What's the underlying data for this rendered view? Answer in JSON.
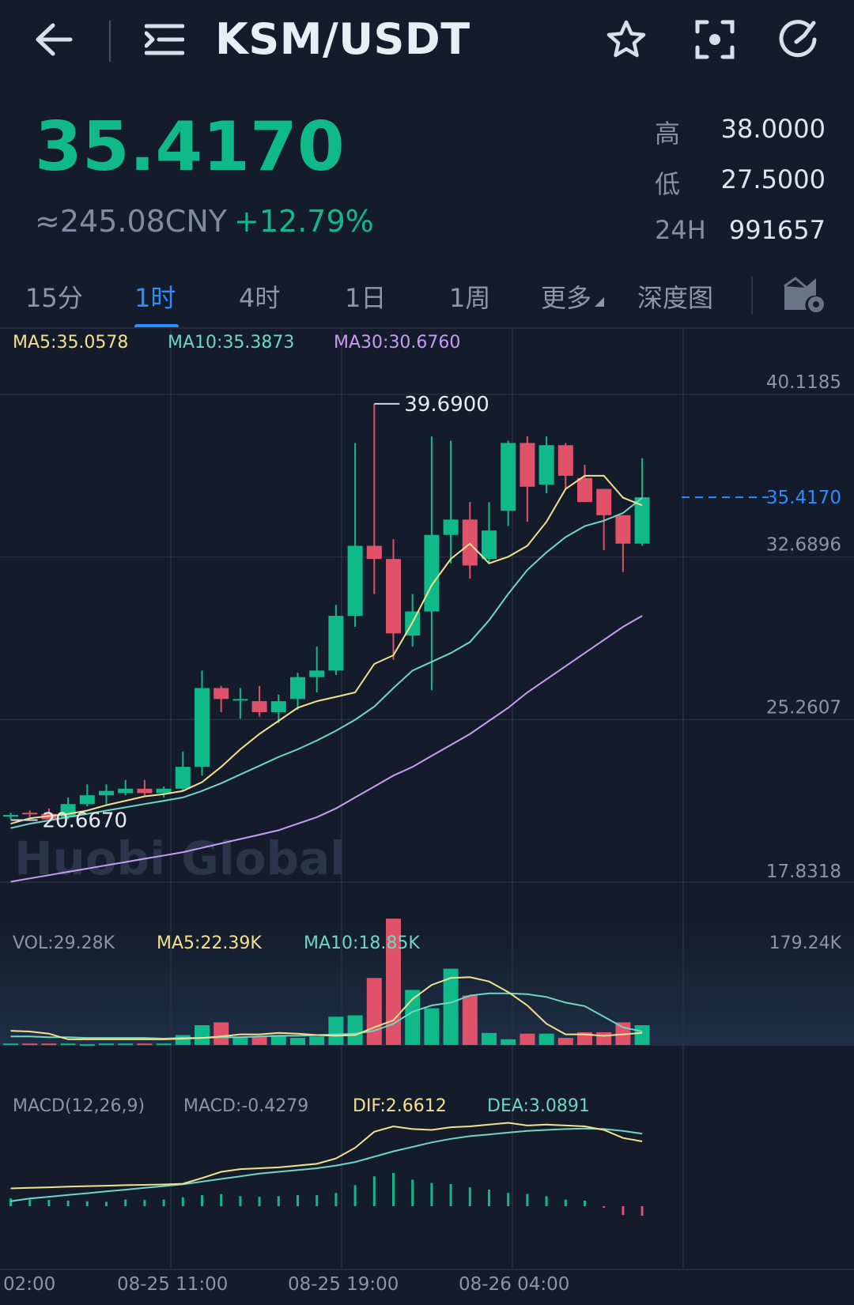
{
  "header": {
    "title": "KSM/USDT",
    "icons": [
      "back-arrow-icon",
      "menu-list-icon",
      "star-icon",
      "scan-icon",
      "refresh-icon"
    ]
  },
  "price": {
    "last": "35.4170",
    "cny": "≈245.08CNY",
    "change": "+12.79%"
  },
  "stats": {
    "high_label": "高",
    "high_value": "38.0000",
    "low_label": "低",
    "low_value": "27.5000",
    "vol24_label": "24H",
    "vol24_value": "991657"
  },
  "tabs": [
    {
      "label": "15分"
    },
    {
      "label": "1时",
      "active": true
    },
    {
      "label": "4时"
    },
    {
      "label": "1日"
    },
    {
      "label": "1周"
    },
    {
      "label": "更多"
    },
    {
      "label": "深度图"
    }
  ],
  "colors": {
    "bg": "#141c2c",
    "up": "#10b98a",
    "down": "#e0516a",
    "accent": "#2d8cff",
    "ma5": "#f3e18f",
    "ma10": "#6fd6c4",
    "ma30": "#c79cf2"
  },
  "indicators": {
    "ma5": "MA5:35.0578",
    "ma10": "MA10:35.3873",
    "ma30": "MA30:30.6760",
    "vol": "VOL:29.28K",
    "vol_ma5": "MA5:22.39K",
    "vol_ma10": "MA10:18.85K",
    "vol_max": "179.24K",
    "macd_params": "MACD(12,26,9)",
    "macd": "MACD:-0.4279",
    "dif": "DIF:2.6612",
    "dea": "DEA:3.0891"
  },
  "watermark": "Huobi Global",
  "chart_data": {
    "type": "candlestick",
    "price_axis": [
      "40.1185",
      "32.6896",
      "25.2607",
      "17.8318"
    ],
    "current_price_label": "35.4170",
    "current_price": 35.417,
    "high_marker": "39.6900",
    "high_value": 39.69,
    "low_marker": "20.6670",
    "low_value": 20.667,
    "ylim": [
      17.8318,
      40.1185
    ],
    "time_labels": [
      "02:00",
      "08-25 11:00",
      "08-25 19:00",
      "08-26 04:00"
    ],
    "candles": [
      [
        20.9,
        21.0,
        20.7,
        20.9
      ],
      [
        21.0,
        21.1,
        20.8,
        20.95
      ],
      [
        20.95,
        21.2,
        20.85,
        20.7
      ],
      [
        20.8,
        21.7,
        20.7,
        21.4
      ],
      [
        21.4,
        22.3,
        21.3,
        21.8
      ],
      [
        21.8,
        22.3,
        21.4,
        22.0
      ],
      [
        21.9,
        22.5,
        21.8,
        22.1
      ],
      [
        22.1,
        22.5,
        21.8,
        21.9
      ],
      [
        21.9,
        22.2,
        21.7,
        22.1
      ],
      [
        22.1,
        23.8,
        22.0,
        23.1
      ],
      [
        23.1,
        27.5,
        22.7,
        26.7
      ],
      [
        26.7,
        26.8,
        25.6,
        26.2
      ],
      [
        26.2,
        26.7,
        25.3,
        26.2
      ],
      [
        26.1,
        26.8,
        25.4,
        25.6
      ],
      [
        25.6,
        26.4,
        25.1,
        26.1
      ],
      [
        26.2,
        27.4,
        25.7,
        27.2
      ],
      [
        27.2,
        28.6,
        26.5,
        27.5
      ],
      [
        27.5,
        30.5,
        27.3,
        30.0
      ],
      [
        30.0,
        37.9,
        29.5,
        33.2
      ],
      [
        33.2,
        39.69,
        31.0,
        32.6
      ],
      [
        32.6,
        33.5,
        28.0,
        29.2
      ],
      [
        29.1,
        31.0,
        28.6,
        30.2
      ],
      [
        30.2,
        38.2,
        26.6,
        33.7
      ],
      [
        33.7,
        38.0,
        32.4,
        34.4
      ],
      [
        34.4,
        35.2,
        31.7,
        32.3
      ],
      [
        32.6,
        35.2,
        32.4,
        33.9
      ],
      [
        34.8,
        38.0,
        34.1,
        37.9
      ],
      [
        37.9,
        38.2,
        34.3,
        35.9
      ],
      [
        36.0,
        38.2,
        35.6,
        37.8
      ],
      [
        37.8,
        37.9,
        35.8,
        36.4
      ],
      [
        36.3,
        36.9,
        35.4,
        35.2
      ],
      [
        35.8,
        35.7,
        33.0,
        34.6
      ],
      [
        34.6,
        34.6,
        32.0,
        33.3
      ],
      [
        33.3,
        37.2,
        33.2,
        35.417
      ]
    ],
    "ma5_values": [
      20.5,
      20.75,
      20.85,
      20.95,
      21.1,
      21.35,
      21.55,
      21.75,
      21.85,
      22.0,
      22.4,
      23.1,
      23.9,
      24.6,
      25.2,
      25.8,
      26.1,
      26.3,
      26.5,
      27.8,
      28.2,
      29.7,
      31.4,
      32.6,
      33.3,
      32.4,
      32.7,
      33.2,
      34.3,
      35.8,
      36.4,
      36.4,
      35.4,
      35.05
    ],
    "ma10_values": [
      20.3,
      20.5,
      20.65,
      20.8,
      20.95,
      21.1,
      21.25,
      21.4,
      21.55,
      21.7,
      22.0,
      22.35,
      22.75,
      23.15,
      23.55,
      23.9,
      24.3,
      24.75,
      25.25,
      25.85,
      26.7,
      27.5,
      27.9,
      28.3,
      28.8,
      29.8,
      31.0,
      32.1,
      32.9,
      33.6,
      34.1,
      34.35,
      34.7,
      35.39
    ],
    "ma30_values": [
      17.85,
      18.0,
      18.15,
      18.3,
      18.45,
      18.6,
      18.75,
      18.9,
      19.05,
      19.2,
      19.4,
      19.6,
      19.8,
      20.0,
      20.2,
      20.5,
      20.8,
      21.2,
      21.7,
      22.2,
      22.7,
      23.1,
      23.6,
      24.1,
      24.6,
      25.2,
      25.8,
      26.5,
      27.1,
      27.7,
      28.3,
      28.9,
      29.5,
      30.0
    ],
    "volume_values": [
      2,
      2,
      2,
      2,
      1,
      2,
      2,
      2,
      2,
      14,
      28,
      32,
      10,
      12,
      14,
      10,
      12,
      40,
      42,
      95,
      179,
      78,
      52,
      108,
      70,
      17,
      8,
      16,
      16,
      10,
      18,
      18,
      32,
      28
    ],
    "vol_ma5_values": [
      20,
      19,
      16,
      8,
      8,
      8,
      8,
      8,
      8,
      9,
      10,
      12,
      15,
      15,
      17,
      16,
      14,
      13,
      14,
      25,
      35,
      65,
      85,
      95,
      96,
      90,
      75,
      56,
      30,
      15,
      15,
      13,
      15,
      17
    ],
    "vol_ma10_values": [
      12,
      12,
      11,
      11,
      10,
      10,
      10,
      10,
      9,
      10,
      10,
      11,
      11,
      12,
      13,
      13,
      14,
      15,
      16,
      20,
      30,
      47,
      56,
      60,
      70,
      73,
      73,
      72,
      68,
      60,
      55,
      40,
      25,
      19
    ],
    "dif_values": [
      0.02,
      0.05,
      0.08,
      0.12,
      0.15,
      0.17,
      0.2,
      0.22,
      0.24,
      0.28,
      0.6,
      0.95,
      1.1,
      1.15,
      1.2,
      1.3,
      1.4,
      1.7,
      2.3,
      3.2,
      3.5,
      3.35,
      3.3,
      3.45,
      3.5,
      3.6,
      3.7,
      3.55,
      3.6,
      3.55,
      3.5,
      3.3,
      2.85,
      2.66
    ],
    "dea_values": [
      -0.7,
      -0.55,
      -0.45,
      -0.35,
      -0.25,
      -0.15,
      -0.05,
      0.05,
      0.15,
      0.25,
      0.4,
      0.55,
      0.7,
      0.85,
      0.95,
      1.05,
      1.15,
      1.3,
      1.5,
      1.8,
      2.1,
      2.35,
      2.6,
      2.8,
      2.95,
      3.05,
      3.15,
      3.25,
      3.3,
      3.35,
      3.38,
      3.35,
      3.25,
      3.09
    ],
    "macd_hist_values": [
      0.35,
      0.3,
      0.28,
      0.25,
      0.22,
      0.2,
      0.3,
      0.28,
      0.3,
      0.4,
      0.5,
      0.55,
      0.45,
      0.42,
      0.45,
      0.5,
      0.5,
      0.6,
      0.95,
      1.35,
      1.5,
      1.2,
      1.05,
      1.0,
      0.85,
      0.75,
      0.6,
      0.55,
      0.45,
      0.3,
      0.25,
      -0.05,
      -0.4,
      -0.43
    ]
  }
}
